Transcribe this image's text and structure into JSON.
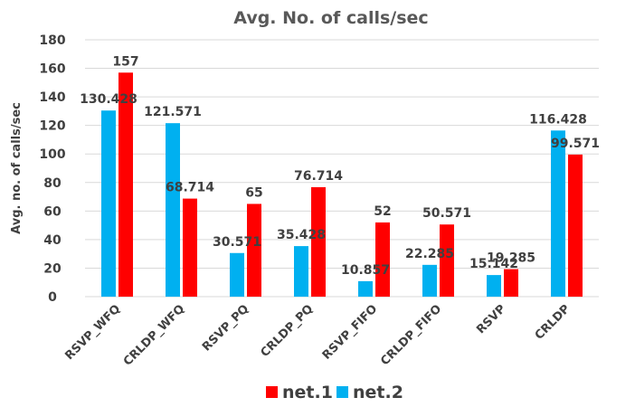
{
  "chart_data": {
    "type": "bar",
    "title": "Avg. No. of calls/sec",
    "xlabel": "",
    "ylabel": "Avg. no. of calls/sec",
    "ylim": [
      0,
      180
    ],
    "yticks": [
      "0",
      "20",
      "40",
      "60",
      "80",
      "100",
      "120",
      "140",
      "160",
      "180"
    ],
    "grid": true,
    "legend_position": "bottom",
    "categories": [
      "RSVP_WFQ",
      "CRLDP_WFQ",
      "RSVP_PQ",
      "CRLDP_PQ",
      "RSVP_FIFO",
      "CRLDP_FIFO",
      "RSVP",
      "CRLDP"
    ],
    "series": [
      {
        "name": "net.2",
        "color": "#00b0f0",
        "values": [
          130.428,
          121.571,
          30.571,
          35.428,
          10.857,
          22.285,
          15.142,
          116.428
        ],
        "labels": [
          "130.428",
          "121.571",
          "30.571",
          "35.428",
          "10.857",
          "22.285",
          "15.142",
          "116.428"
        ]
      },
      {
        "name": "net.1",
        "color": "#ff0000",
        "values": [
          157,
          68.714,
          65,
          76.714,
          52,
          50.571,
          19.285,
          99.571
        ],
        "labels": [
          "157",
          "68.714",
          "65",
          "76.714",
          "52",
          "50.571",
          "19.285",
          "99.571"
        ]
      }
    ],
    "legend_order": [
      "net.1",
      "net.2"
    ]
  }
}
